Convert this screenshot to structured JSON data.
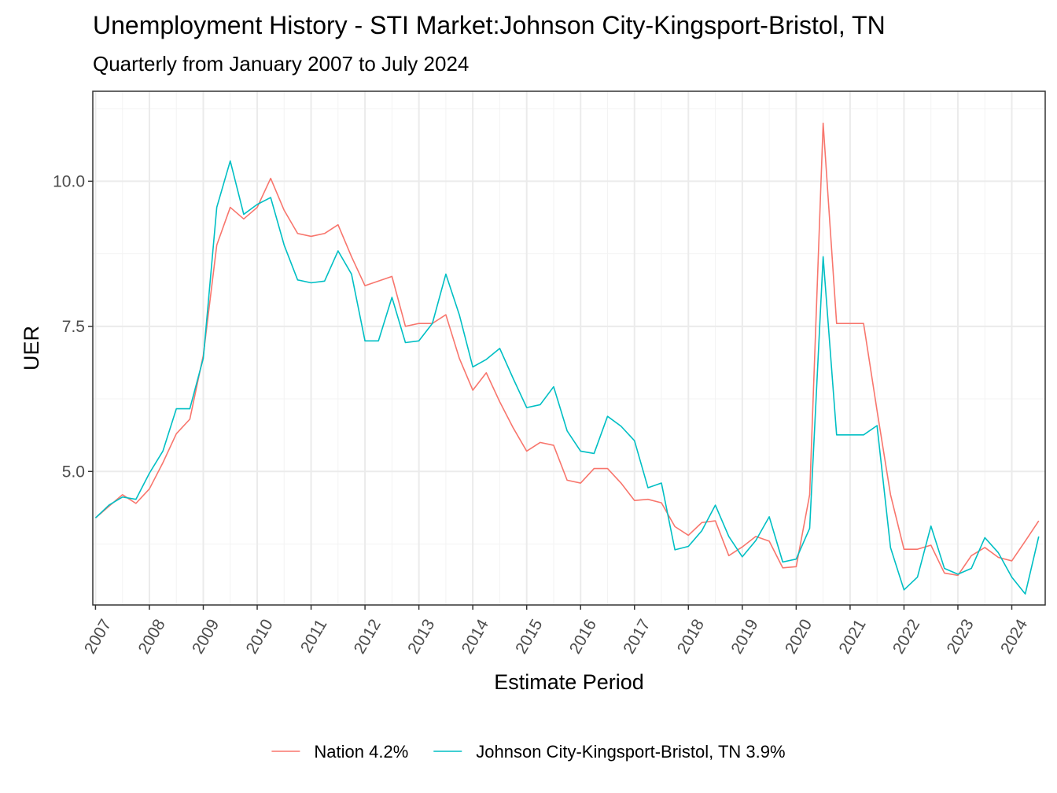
{
  "chart_data": {
    "type": "line",
    "title": "Unemployment History - STI Market:Johnson City-Kingsport-Bristol, TN",
    "subtitle": "Quarterly from January 2007 to July 2024",
    "xlabel": "Estimate Period",
    "ylabel": "UER",
    "xlim": [
      2006.95,
      2024.62
    ],
    "ylim": [
      2.7,
      11.55
    ],
    "x_ticks": [
      2007,
      2008,
      2009,
      2010,
      2011,
      2012,
      2013,
      2014,
      2015,
      2016,
      2017,
      2018,
      2019,
      2020,
      2021,
      2022,
      2023,
      2024
    ],
    "x_tick_labels": [
      "2007",
      "2008",
      "2009",
      "2010",
      "2011",
      "2012",
      "2013",
      "2014",
      "2015",
      "2016",
      "2017",
      "2018",
      "2019",
      "2020",
      "2021",
      "2022",
      "2023",
      "2024"
    ],
    "y_ticks": [
      5.0,
      7.5,
      10.0
    ],
    "y_tick_labels": [
      "5.0",
      "7.5",
      "10.0"
    ],
    "y_minor_ticks": [
      3.75,
      6.25,
      8.75,
      11.25
    ],
    "grid": true,
    "legend_position": "bottom",
    "x": [
      2007.0,
      2007.25,
      2007.5,
      2007.75,
      2008.0,
      2008.25,
      2008.5,
      2008.75,
      2009.0,
      2009.25,
      2009.5,
      2009.75,
      2010.0,
      2010.25,
      2010.5,
      2010.75,
      2011.0,
      2011.25,
      2011.5,
      2011.75,
      2012.0,
      2012.25,
      2012.5,
      2012.75,
      2013.0,
      2013.25,
      2013.5,
      2013.75,
      2014.0,
      2014.25,
      2014.5,
      2014.75,
      2015.0,
      2015.25,
      2015.5,
      2015.75,
      2016.0,
      2016.25,
      2016.5,
      2016.75,
      2017.0,
      2017.25,
      2017.5,
      2017.75,
      2018.0,
      2018.25,
      2018.5,
      2018.75,
      2019.0,
      2019.25,
      2019.5,
      2019.75,
      2020.0,
      2020.25,
      2020.5,
      2020.75,
      2021.0,
      2021.25,
      2021.5,
      2021.75,
      2022.0,
      2022.25,
      2022.5,
      2022.75,
      2023.0,
      2023.25,
      2023.5,
      2023.75,
      2024.0,
      2024.25,
      2024.5
    ],
    "series": [
      {
        "name": "Nation 4.2%",
        "color": "#f8766d",
        "values": [
          4.2,
          4.4,
          4.6,
          4.45,
          4.7,
          5.15,
          5.65,
          5.9,
          7.0,
          8.9,
          9.55,
          9.35,
          9.55,
          10.05,
          9.5,
          9.1,
          9.05,
          9.1,
          9.25,
          8.7,
          8.2,
          8.28,
          8.36,
          7.5,
          7.55,
          7.55,
          7.7,
          6.95,
          6.4,
          6.7,
          6.2,
          5.75,
          5.35,
          5.5,
          5.45,
          4.85,
          4.8,
          5.05,
          5.05,
          4.8,
          4.5,
          4.52,
          4.46,
          4.05,
          3.9,
          4.12,
          4.15,
          3.55,
          3.7,
          3.88,
          3.8,
          3.34,
          3.36,
          4.6,
          11.0,
          7.55,
          7.55,
          7.55,
          6.05,
          4.6,
          3.66,
          3.66,
          3.73,
          3.25,
          3.21,
          3.55,
          3.69,
          3.52,
          3.46,
          3.8,
          4.15
        ]
      },
      {
        "name": "Johnson City-Kingsport-Bristol, TN 3.9%",
        "color": "#00bfc4",
        "values": [
          4.2,
          4.42,
          4.56,
          4.52,
          4.97,
          5.35,
          6.08,
          6.08,
          6.95,
          9.55,
          10.35,
          9.43,
          9.6,
          9.72,
          8.9,
          8.3,
          8.25,
          8.28,
          8.8,
          8.4,
          7.25,
          7.25,
          8.0,
          7.22,
          7.25,
          7.55,
          8.4,
          7.7,
          6.8,
          6.93,
          7.12,
          6.6,
          6.1,
          6.15,
          6.46,
          5.7,
          5.35,
          5.31,
          5.95,
          5.78,
          5.53,
          4.72,
          4.8,
          3.65,
          3.71,
          3.98,
          4.42,
          3.88,
          3.53,
          3.81,
          4.22,
          3.44,
          3.49,
          4.02,
          8.7,
          5.63,
          5.63,
          5.63,
          5.79,
          3.69,
          2.96,
          3.18,
          4.06,
          3.33,
          3.23,
          3.33,
          3.86,
          3.6,
          3.18,
          2.89,
          3.88
        ]
      }
    ]
  }
}
